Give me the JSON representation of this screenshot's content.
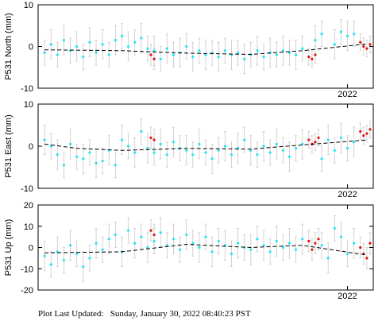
{
  "footer": {
    "label": "Plot Last Updated:",
    "timestamp": "Sunday, January 30, 2022 08:40:23 PST"
  },
  "colors": {
    "points": "#22e5f2",
    "recent_points": "#e01010",
    "error_bars": "#c8c8c8",
    "trend": "#000000",
    "frame": "#000000"
  },
  "chart_data": [
    {
      "type": "scatter",
      "component": "north",
      "ylabel": "P531 North (mm)",
      "ylim": [
        -10,
        10
      ],
      "yticks": [
        -10,
        0,
        10
      ],
      "xtick_labels": [
        "2022"
      ],
      "xlim": [
        2017.2,
        2022.4
      ],
      "trend": {
        "x": [
          2017.3,
          2018.5,
          2019.5,
          2020.5,
          2021.3,
          2022.3
        ],
        "y": [
          -0.8,
          -1.0,
          -1.6,
          -1.9,
          -1.0,
          0.6
        ]
      },
      "series": [
        {
          "color_role": "points",
          "x": [
            2017.3,
            2017.4,
            2017.5,
            2017.6,
            2017.7,
            2017.8,
            2017.9,
            2018.0,
            2018.1,
            2018.2,
            2018.3,
            2018.4,
            2018.5,
            2018.6,
            2018.7,
            2018.8,
            2018.9,
            2019.0,
            2019.1,
            2019.2,
            2019.3,
            2019.4,
            2019.5,
            2019.6,
            2019.7,
            2019.8,
            2019.9,
            2020.0,
            2020.1,
            2020.2,
            2020.3,
            2020.4,
            2020.5,
            2020.6,
            2020.7,
            2020.8,
            2020.9,
            2021.0,
            2021.1,
            2021.2,
            2021.3,
            2021.5,
            2021.6,
            2021.8,
            2021.9,
            2022.0,
            2022.1
          ],
          "y": [
            -1.5,
            0.5,
            -2.0,
            1.5,
            -1.0,
            0.0,
            -2.5,
            1.0,
            -1.5,
            0.5,
            -2.0,
            1.5,
            2.5,
            0.0,
            1.0,
            2.0,
            -0.5,
            -1.0,
            -3.0,
            -0.5,
            -2.0,
            -1.5,
            0.0,
            -2.5,
            -1.0,
            -2.0,
            -1.5,
            -2.5,
            -1.0,
            -2.0,
            -1.5,
            -3.0,
            -2.0,
            -1.0,
            -2.5,
            -1.5,
            -2.0,
            -1.0,
            -1.5,
            -2.0,
            -0.5,
            1.5,
            3.0,
            0.5,
            3.5,
            2.5,
            3.0
          ],
          "yerr": [
            3.0,
            3.5,
            3.0,
            3.5,
            3.0,
            3.5,
            3.0,
            3.5,
            3.0,
            3.5,
            3.0,
            3.5,
            3.0,
            3.5,
            3.0,
            3.5,
            3.0,
            3.5,
            3.0,
            3.5,
            3.0,
            3.5,
            3.0,
            3.5,
            3.0,
            3.5,
            3.0,
            3.5,
            3.0,
            3.5,
            3.0,
            3.5,
            3.0,
            3.5,
            3.0,
            3.5,
            3.0,
            3.5,
            3.0,
            3.5,
            3.0,
            3.5,
            3.0,
            3.5,
            3.0,
            3.5,
            3.0
          ]
        },
        {
          "color_role": "recent_points",
          "x": [
            2018.95,
            2019.0,
            2021.4,
            2021.45,
            2021.5,
            2022.2,
            2022.25,
            2022.3,
            2022.35
          ],
          "y": [
            -2.0,
            -3.0,
            -2.5,
            -3.0,
            -2.0,
            1.0,
            0.0,
            -0.5,
            0.5
          ],
          "yerr": [
            2.5,
            2.5,
            2.0,
            2.0,
            2.0,
            2.0,
            2.0,
            2.0,
            2.0
          ]
        }
      ]
    },
    {
      "type": "scatter",
      "component": "east",
      "ylabel": "P531 East (mm)",
      "ylim": [
        -10,
        10
      ],
      "yticks": [
        -10,
        0,
        10
      ],
      "xtick_labels": [
        "2022"
      ],
      "xlim": [
        2017.2,
        2022.4
      ],
      "trend": {
        "x": [
          2017.3,
          2017.8,
          2018.5,
          2019.5,
          2020.5,
          2021.3,
          2022.3
        ],
        "y": [
          0.5,
          -0.5,
          -1.0,
          -0.5,
          -0.7,
          0.3,
          1.5
        ]
      },
      "series": [
        {
          "color_role": "points",
          "x": [
            2017.3,
            2017.4,
            2017.5,
            2017.6,
            2017.7,
            2017.8,
            2017.9,
            2018.0,
            2018.1,
            2018.2,
            2018.3,
            2018.4,
            2018.5,
            2018.6,
            2018.7,
            2018.8,
            2018.9,
            2019.0,
            2019.1,
            2019.2,
            2019.3,
            2019.4,
            2019.5,
            2019.6,
            2019.7,
            2019.8,
            2019.9,
            2020.0,
            2020.1,
            2020.2,
            2020.3,
            2020.4,
            2020.5,
            2020.6,
            2020.7,
            2020.8,
            2020.9,
            2021.0,
            2021.1,
            2021.2,
            2021.3,
            2021.6,
            2021.7,
            2021.8,
            2021.9,
            2022.0,
            2022.1
          ],
          "y": [
            1.5,
            0.0,
            -2.0,
            -4.5,
            0.5,
            -2.5,
            -3.0,
            -1.5,
            -4.0,
            -3.5,
            -1.0,
            -4.5,
            1.5,
            0.0,
            -1.5,
            3.5,
            -0.5,
            -1.5,
            0.5,
            -2.0,
            1.0,
            -0.5,
            -1.0,
            -2.0,
            0.5,
            -1.5,
            -3.0,
            -1.0,
            0.0,
            -2.0,
            -0.5,
            1.5,
            -1.0,
            -2.0,
            0.0,
            -1.5,
            0.5,
            -1.0,
            -2.5,
            -0.5,
            0.5,
            -3.0,
            1.5,
            -1.0,
            2.0,
            -0.5,
            1.0
          ],
          "yerr": [
            3.5,
            3.0,
            3.5,
            3.0,
            3.5,
            3.0,
            3.5,
            3.0,
            3.5,
            3.0,
            3.5,
            3.0,
            3.5,
            3.0,
            3.5,
            3.0,
            3.5,
            3.0,
            3.5,
            3.0,
            3.5,
            3.0,
            3.5,
            3.0,
            3.5,
            3.0,
            3.5,
            3.0,
            3.5,
            3.0,
            3.5,
            3.0,
            3.5,
            3.0,
            3.5,
            3.0,
            3.5,
            3.0,
            3.5,
            3.0,
            3.5,
            3.0,
            3.5,
            3.0,
            3.5,
            3.0,
            3.5
          ]
        },
        {
          "color_role": "recent_points",
          "x": [
            2018.95,
            2019.0,
            2021.4,
            2021.45,
            2021.5,
            2021.55,
            2022.2,
            2022.25,
            2022.3,
            2022.35
          ],
          "y": [
            2.0,
            1.5,
            1.5,
            0.5,
            1.0,
            2.0,
            3.5,
            2.5,
            3.0,
            4.0
          ],
          "yerr": [
            2.5,
            2.5,
            2.0,
            2.0,
            2.0,
            2.0,
            2.0,
            2.0,
            2.0,
            2.0
          ]
        }
      ]
    },
    {
      "type": "scatter",
      "component": "up",
      "ylabel": "P531 Up (mm)",
      "ylim": [
        -20,
        20
      ],
      "yticks": [
        -20,
        -10,
        0,
        10,
        20
      ],
      "xtick_labels": [
        "2022"
      ],
      "xlim": [
        2017.2,
        2022.4
      ],
      "trend": {
        "x": [
          2017.3,
          2018.5,
          2019.5,
          2020.5,
          2021.3,
          2022.3
        ],
        "y": [
          -2.5,
          -2.0,
          1.5,
          0.0,
          1.0,
          -3.5
        ]
      },
      "series": [
        {
          "color_role": "points",
          "x": [
            2017.3,
            2017.4,
            2017.5,
            2017.6,
            2017.7,
            2017.8,
            2017.9,
            2018.0,
            2018.1,
            2018.2,
            2018.3,
            2018.4,
            2018.5,
            2018.6,
            2018.7,
            2018.8,
            2018.9,
            2019.0,
            2019.1,
            2019.2,
            2019.3,
            2019.4,
            2019.5,
            2019.6,
            2019.7,
            2019.8,
            2019.9,
            2020.0,
            2020.1,
            2020.2,
            2020.3,
            2020.4,
            2020.5,
            2020.6,
            2020.7,
            2020.8,
            2020.9,
            2021.0,
            2021.1,
            2021.2,
            2021.3,
            2021.6,
            2021.7,
            2021.8,
            2021.9,
            2022.0,
            2022.1
          ],
          "y": [
            -4.0,
            -8.0,
            -2.0,
            -6.0,
            1.0,
            -3.0,
            -9.0,
            -5.0,
            2.0,
            -1.0,
            4.0,
            6.0,
            -2.0,
            8.0,
            2.0,
            5.0,
            0.0,
            3.0,
            7.0,
            1.0,
            4.0,
            -1.0,
            6.0,
            2.0,
            0.0,
            5.0,
            -2.0,
            3.0,
            1.0,
            -3.0,
            2.0,
            0.0,
            -1.0,
            4.0,
            1.0,
            -2.0,
            3.0,
            0.0,
            2.0,
            -1.0,
            4.0,
            1.0,
            -5.0,
            9.0,
            5.0,
            -3.0,
            2.0
          ],
          "yerr": [
            7.0,
            6.0,
            7.0,
            6.0,
            7.0,
            6.0,
            7.0,
            6.0,
            7.0,
            6.0,
            7.0,
            6.0,
            7.0,
            6.0,
            7.0,
            6.0,
            7.0,
            6.0,
            7.0,
            6.0,
            7.0,
            6.0,
            7.0,
            6.0,
            7.0,
            6.0,
            7.0,
            6.0,
            7.0,
            6.0,
            7.0,
            6.0,
            7.0,
            6.0,
            7.0,
            6.0,
            7.0,
            6.0,
            7.0,
            6.0,
            7.0,
            6.0,
            7.0,
            6.0,
            7.0,
            6.0,
            7.0
          ]
        },
        {
          "color_role": "recent_points",
          "x": [
            2018.95,
            2019.0,
            2021.4,
            2021.45,
            2021.5,
            2021.55,
            2022.2,
            2022.25,
            2022.3,
            2022.35
          ],
          "y": [
            8.0,
            6.0,
            3.0,
            -1.0,
            2.0,
            4.0,
            0.0,
            -3.0,
            -5.0,
            2.0
          ],
          "yerr": [
            5.0,
            5.0,
            5.0,
            5.0,
            5.0,
            5.0,
            5.0,
            5.0,
            5.0,
            5.0
          ]
        }
      ]
    }
  ]
}
